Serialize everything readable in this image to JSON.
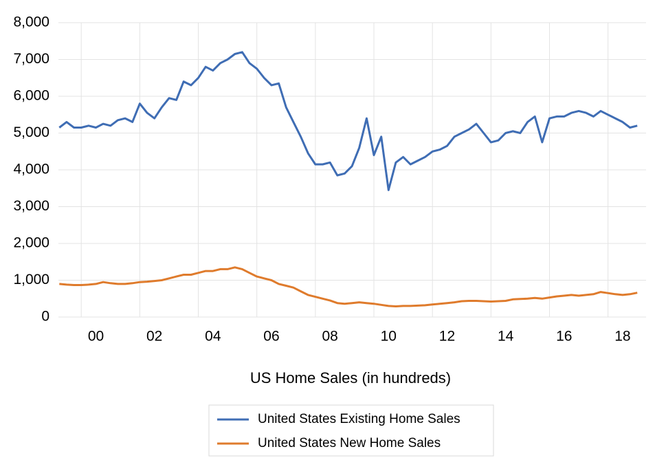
{
  "chart_data": {
    "type": "line",
    "title": "US Home Sales (in hundreds)",
    "x": [
      1999.25,
      1999.5,
      1999.75,
      2000.0,
      2000.25,
      2000.5,
      2000.75,
      2001.0,
      2001.25,
      2001.5,
      2001.75,
      2002.0,
      2002.25,
      2002.5,
      2002.75,
      2003.0,
      2003.25,
      2003.5,
      2003.75,
      2004.0,
      2004.25,
      2004.5,
      2004.75,
      2005.0,
      2005.25,
      2005.5,
      2005.75,
      2006.0,
      2006.25,
      2006.5,
      2006.75,
      2007.0,
      2007.25,
      2007.5,
      2007.75,
      2008.0,
      2008.25,
      2008.5,
      2008.75,
      2009.0,
      2009.25,
      2009.5,
      2009.75,
      2010.0,
      2010.25,
      2010.5,
      2010.75,
      2011.0,
      2011.25,
      2011.5,
      2011.75,
      2012.0,
      2012.25,
      2012.5,
      2012.75,
      2013.0,
      2013.25,
      2013.5,
      2013.75,
      2014.0,
      2014.25,
      2014.5,
      2014.75,
      2015.0,
      2015.25,
      2015.5,
      2015.75,
      2016.0,
      2016.25,
      2016.5,
      2016.75,
      2017.0,
      2017.25,
      2017.5,
      2017.75,
      2018.0,
      2018.25,
      2018.5,
      2018.75,
      2019.0
    ],
    "series": [
      {
        "name": "United States Existing Home Sales",
        "color": "#3f6db4",
        "values": [
          5150,
          5300,
          5150,
          5150,
          5200,
          5150,
          5250,
          5200,
          5350,
          5400,
          5300,
          5800,
          5550,
          5400,
          5700,
          5950,
          5900,
          6400,
          6300,
          6500,
          6800,
          6700,
          6900,
          7000,
          7150,
          7200,
          6900,
          6750,
          6500,
          6300,
          6350,
          5700,
          5300,
          4900,
          4450,
          4150,
          4150,
          4200,
          3850,
          3900,
          4100,
          4600,
          5400,
          4400,
          4900,
          3450,
          4200,
          4350,
          4150,
          4250,
          4350,
          4500,
          4550,
          4650,
          4900,
          5000,
          5100,
          5250,
          5000,
          4750,
          4800,
          5000,
          5050,
          5000,
          5300,
          5450,
          4750,
          5400,
          5450,
          5450,
          5550,
          5600,
          5550,
          5450,
          5600,
          5500,
          5400,
          5300,
          5150,
          5200
        ]
      },
      {
        "name": "United States New Home Sales",
        "color": "#df7b2c",
        "values": [
          900,
          880,
          870,
          870,
          880,
          900,
          950,
          920,
          900,
          900,
          920,
          950,
          960,
          980,
          1000,
          1050,
          1100,
          1150,
          1150,
          1200,
          1250,
          1250,
          1300,
          1300,
          1350,
          1300,
          1200,
          1100,
          1050,
          1000,
          900,
          850,
          800,
          700,
          600,
          550,
          500,
          450,
          380,
          360,
          380,
          400,
          380,
          360,
          330,
          300,
          290,
          300,
          300,
          310,
          320,
          340,
          360,
          380,
          400,
          430,
          440,
          440,
          430,
          420,
          430,
          440,
          480,
          490,
          500,
          520,
          500,
          530,
          560,
          580,
          600,
          580,
          600,
          620,
          680,
          650,
          620,
          600,
          620,
          660
        ]
      }
    ],
    "xlim": [
      1999.22,
      2019.3
    ],
    "xticks": [
      {
        "value": 2000,
        "label": "00"
      },
      {
        "value": 2002,
        "label": "02"
      },
      {
        "value": 2004,
        "label": "04"
      },
      {
        "value": 2006,
        "label": "06"
      },
      {
        "value": 2008,
        "label": "08"
      },
      {
        "value": 2010,
        "label": "10"
      },
      {
        "value": 2012,
        "label": "12"
      },
      {
        "value": 2014,
        "label": "14"
      },
      {
        "value": 2016,
        "label": "16"
      },
      {
        "value": 2018,
        "label": "18"
      }
    ],
    "ylim": [
      0,
      8000
    ],
    "yticks": [
      0,
      {
        "value": 1000,
        "label": "1,000"
      },
      {
        "value": 2000,
        "label": "2,000"
      },
      {
        "value": 3000,
        "label": "3,000"
      },
      {
        "value": 4000,
        "label": "4,000"
      },
      {
        "value": 5000,
        "label": "5,000"
      },
      {
        "value": 6000,
        "label": "6,000"
      },
      {
        "value": 7000,
        "label": "7,000"
      },
      {
        "value": 8000,
        "label": "8,000"
      }
    ],
    "grid": true
  }
}
